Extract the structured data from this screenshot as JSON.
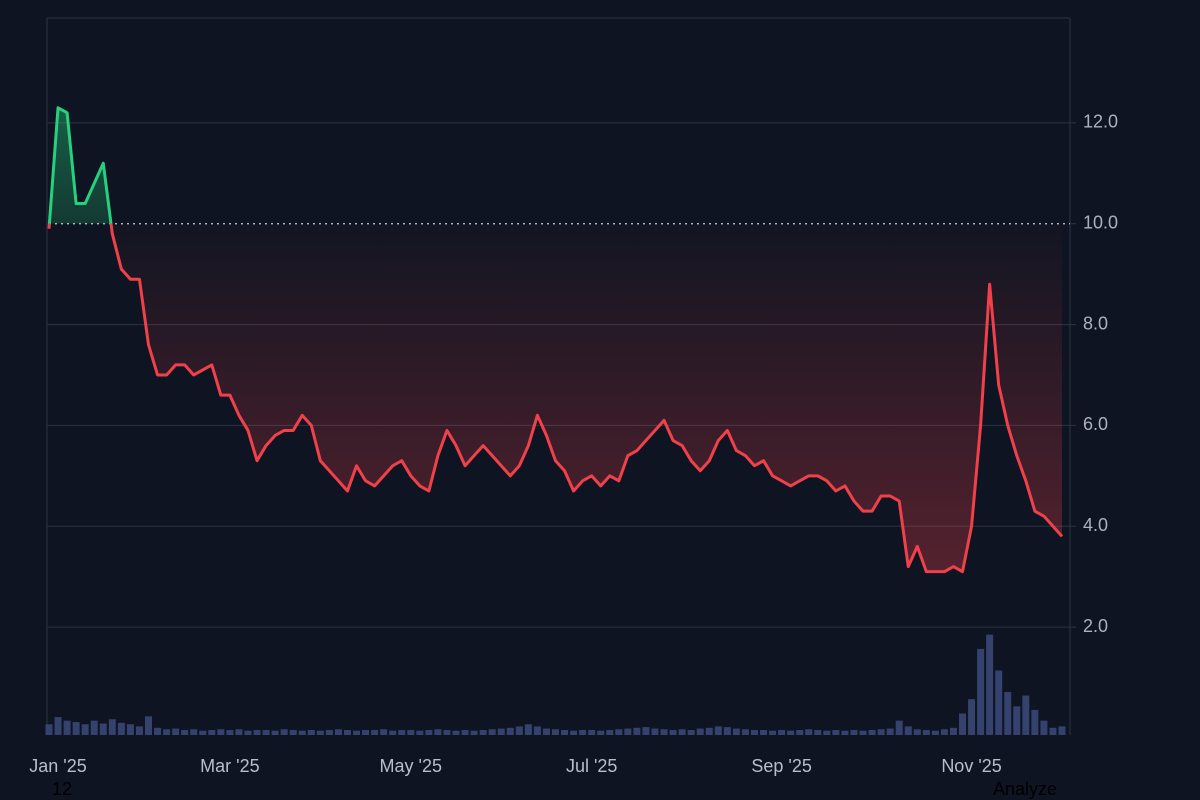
{
  "chart_data": {
    "type": "line",
    "categories": [
      "Jan '25",
      null,
      null,
      null,
      null,
      null,
      null,
      null,
      null,
      null,
      null,
      null,
      null,
      null,
      null,
      null,
      null,
      null,
      null,
      null,
      "Mar '25",
      null,
      null,
      null,
      null,
      null,
      null,
      null,
      null,
      null,
      null,
      null,
      null,
      null,
      null,
      null,
      null,
      null,
      null,
      null,
      "May '25",
      null,
      null,
      null,
      null,
      null,
      null,
      null,
      null,
      null,
      null,
      null,
      null,
      null,
      null,
      null,
      null,
      null,
      null,
      null,
      "Jul '25",
      null,
      null,
      null,
      null,
      null,
      null,
      null,
      null,
      null,
      null,
      null,
      null,
      null,
      null,
      null,
      null,
      null,
      null,
      null,
      null,
      "Sep '25",
      null,
      null,
      null,
      null,
      null,
      null,
      null,
      null,
      null,
      null,
      null,
      null,
      null,
      null,
      null,
      null,
      null,
      null,
      null,
      null,
      "Nov '25",
      null,
      null,
      null,
      null,
      null,
      null,
      null,
      null,
      null,
      null
    ],
    "values": [
      9.9,
      12.3,
      12.2,
      10.4,
      10.4,
      10.8,
      11.2,
      9.8,
      9.1,
      8.9,
      8.9,
      7.6,
      7.0,
      7.0,
      7.2,
      7.2,
      7.0,
      7.1,
      7.2,
      6.6,
      6.6,
      6.2,
      5.9,
      5.3,
      5.6,
      5.8,
      5.9,
      5.9,
      6.2,
      6.0,
      5.3,
      5.1,
      4.9,
      4.7,
      5.2,
      4.9,
      4.8,
      5.0,
      5.2,
      5.3,
      5.0,
      4.8,
      4.7,
      5.4,
      5.9,
      5.6,
      5.2,
      5.4,
      5.6,
      5.4,
      5.2,
      5.0,
      5.2,
      5.6,
      6.2,
      5.8,
      5.3,
      5.1,
      4.7,
      4.9,
      5.0,
      4.8,
      5.0,
      4.9,
      5.4,
      5.5,
      5.7,
      5.9,
      6.1,
      5.7,
      5.6,
      5.3,
      5.1,
      5.3,
      5.7,
      5.9,
      5.5,
      5.4,
      5.2,
      5.3,
      5.0,
      4.9,
      4.8,
      4.9,
      5.0,
      5.0,
      4.9,
      4.7,
      4.8,
      4.5,
      4.3,
      4.3,
      4.6,
      4.6,
      4.5,
      3.2,
      3.6,
      3.1,
      3.1,
      3.1,
      3.2,
      3.1,
      4.0,
      6.0,
      8.8,
      6.8,
      6.0,
      5.4,
      4.9,
      4.3,
      4.2,
      4.0,
      3.8
    ],
    "up_color": "#26d07c",
    "down_color": "#f0404a",
    "baseline": 10,
    "volume": {
      "axis": "y2",
      "color": "#3b4a7a",
      "values": [
        1.5,
        2.5,
        2.0,
        1.8,
        1.5,
        2.0,
        1.6,
        2.2,
        1.7,
        1.5,
        1.2,
        2.6,
        1.0,
        0.8,
        0.9,
        0.7,
        0.8,
        0.6,
        0.7,
        0.8,
        0.7,
        0.8,
        0.6,
        0.7,
        0.7,
        0.6,
        0.8,
        0.7,
        0.6,
        0.7,
        0.6,
        0.7,
        0.8,
        0.7,
        0.6,
        0.7,
        0.7,
        0.8,
        0.6,
        0.7,
        0.7,
        0.6,
        0.7,
        0.8,
        0.7,
        0.6,
        0.7,
        0.6,
        0.7,
        0.8,
        0.9,
        1.0,
        1.2,
        1.5,
        1.2,
        0.9,
        0.8,
        0.7,
        0.6,
        0.7,
        0.7,
        0.6,
        0.7,
        0.8,
        0.9,
        1.0,
        1.1,
        0.9,
        0.8,
        0.7,
        0.8,
        0.7,
        0.9,
        1.0,
        1.2,
        1.1,
        0.9,
        0.8,
        0.7,
        0.7,
        0.6,
        0.7,
        0.6,
        0.7,
        0.8,
        0.7,
        0.6,
        0.7,
        0.6,
        0.7,
        0.6,
        0.7,
        0.8,
        0.9,
        2.0,
        1.2,
        0.8,
        0.7,
        0.6,
        0.8,
        1.0,
        3.0,
        5.0,
        12.0,
        14.0,
        9.0,
        6.0,
        4.0,
        5.5,
        3.5,
        2.0,
        1.0,
        1.2
      ]
    },
    "ylim": [
      -0.14,
      14.08
    ],
    "yticks": [
      {
        "value": 2,
        "label": "2.0"
      },
      {
        "value": 4,
        "label": "4.0"
      },
      {
        "value": 6,
        "label": "6.0"
      },
      {
        "value": 8,
        "label": "8.0"
      },
      {
        "value": 10,
        "label": "10.0"
      },
      {
        "value": 12,
        "label": "12.0"
      }
    ],
    "y2lim": [
      0,
      100
    ],
    "grid": true
  },
  "footer": {
    "left": "12",
    "right": "Analyze"
  }
}
